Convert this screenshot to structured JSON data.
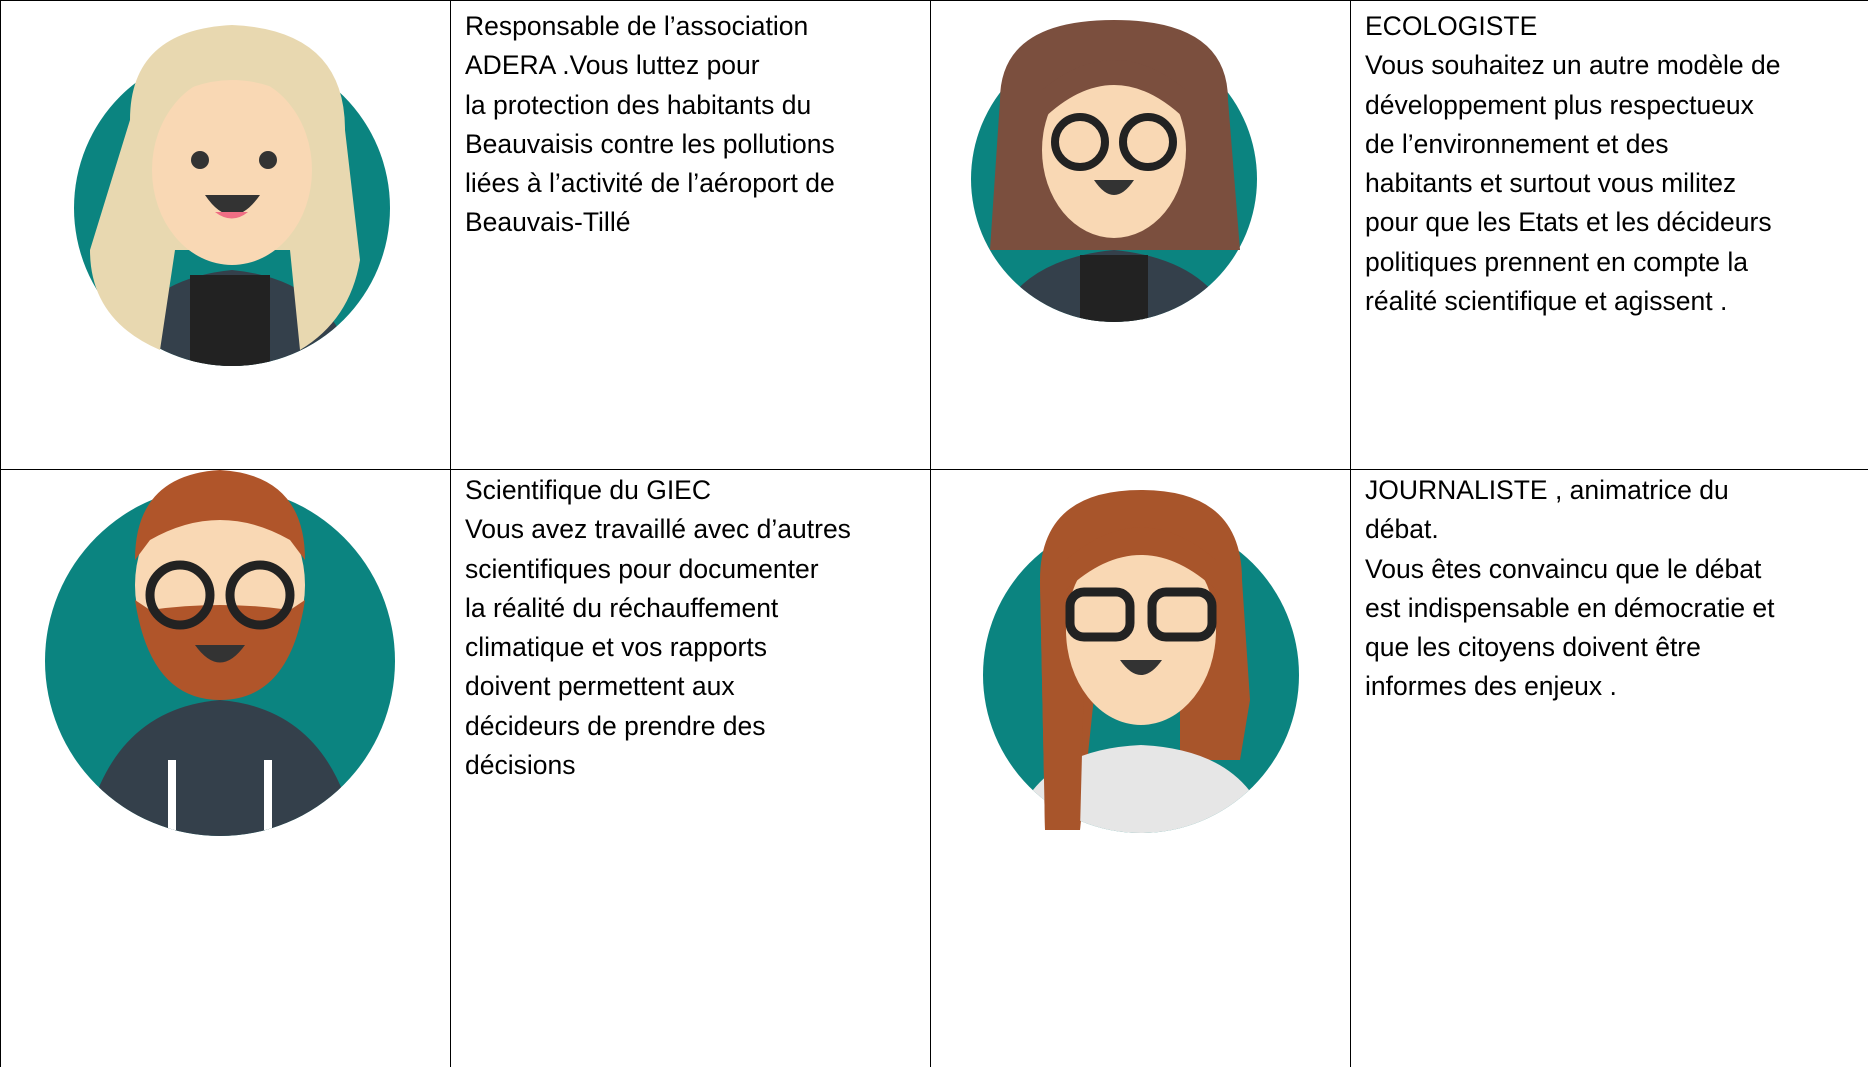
{
  "cells": [
    {
      "lines": [
        "Responsable de l’association",
        "ADERA .Vous luttez pour",
        "la protection des habitants du",
        "Beauvaisis contre les pollutions",
        "liées à l’activité de l’aéroport de",
        "Beauvais-Tillé"
      ]
    },
    {
      "lines": [
        "ECOLOGISTE",
        "Vous souhaitez un autre modèle de",
        "développement plus respectueux",
        "de l’environnement et des",
        "habitants et surtout vous militez",
        "pour que les Etats et les décideurs",
        "politiques prennent en compte la",
        "réalité scientifique et agissent ."
      ]
    },
    {
      "lines": [
        "Scientifique du GIEC",
        "Vous avez travaillé avec d’autres",
        "scientifiques pour documenter",
        "la réalité du réchauffement",
        "climatique et vos rapports",
        "doivent permettent aux",
        "décideurs de prendre des",
        "décisions"
      ]
    },
    {
      "lines": [
        "JOURNALISTE , animatrice du",
        "débat.",
        "Vous êtes convaincu que le débat",
        "est indispensable en démocratie et",
        "que les citoyens doivent être",
        "informes des enjeux ."
      ]
    }
  ]
}
